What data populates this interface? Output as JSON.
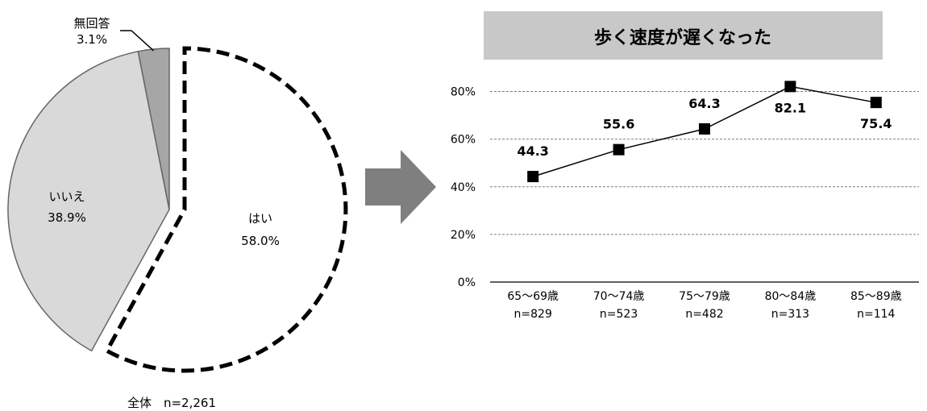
{
  "chart_data": [
    {
      "type": "pie",
      "caption": "全体　n=2,261",
      "slices": [
        {
          "label": "はい",
          "value": 58.0,
          "value_text": "58.0%",
          "color": "#ffffff",
          "outline": "dashed",
          "exploded": true
        },
        {
          "label": "いいえ",
          "value": 38.9,
          "value_text": "38.9%",
          "color": "#d9d9d9"
        },
        {
          "label": "無回答",
          "value": 3.1,
          "value_text": "3.1%",
          "color": "#a6a6a6"
        }
      ]
    },
    {
      "type": "line",
      "title": "歩く速度が遅くなった",
      "categories": [
        "65～69歳",
        "70～74歳",
        "75～79歳",
        "80～84歳",
        "85～89歳"
      ],
      "sublabels": [
        "n=829",
        "n=523",
        "n=482",
        "n=313",
        "n=114"
      ],
      "values": [
        44.3,
        55.6,
        64.3,
        82.1,
        75.4
      ],
      "value_labels": [
        "44.3",
        "55.6",
        "64.3",
        "82.1",
        "75.4"
      ],
      "yticks": [
        "0%",
        "20%",
        "40%",
        "60%",
        "80%"
      ],
      "ylim": [
        0,
        90
      ],
      "grid": "dashed-horizontal",
      "marker": "square",
      "title_bg": "#c8c8c8"
    }
  ],
  "arrow": {
    "color": "#7f7f7f"
  }
}
